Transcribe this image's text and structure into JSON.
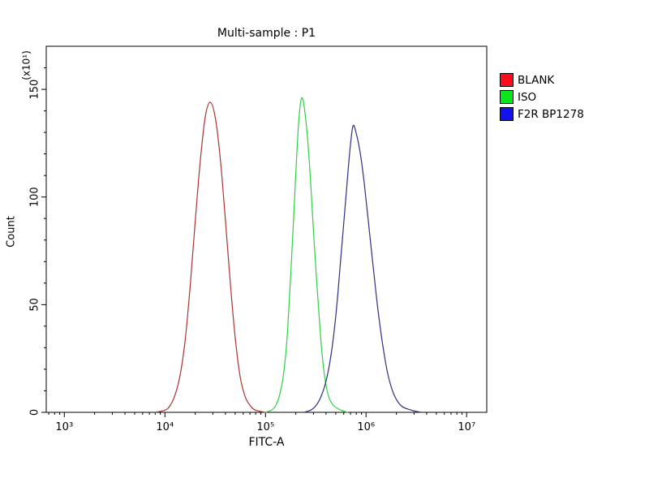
{
  "chart_data": {
    "type": "line",
    "title": "Multi-sample : P1",
    "xlabel": "FITC-A",
    "ylabel": "Count",
    "y_axis_multiplier": "(x10¹)",
    "x_scale": "log10",
    "x_range_log10": [
      2.82,
      7.2
    ],
    "ylim": [
      0,
      170
    ],
    "grid": false,
    "legend_position": "top-right",
    "axis_color": "#000000",
    "x_ticks": [
      {
        "log10": 3,
        "label": "10³"
      },
      {
        "log10": 4,
        "label": "10⁴"
      },
      {
        "log10": 5,
        "label": "10⁵"
      },
      {
        "log10": 6,
        "label": "10⁶"
      },
      {
        "log10": 7,
        "label": "10⁷"
      }
    ],
    "y_major_ticks": [
      {
        "value": 0,
        "label": "0"
      },
      {
        "value": 50,
        "label": "50"
      },
      {
        "value": 100,
        "label": "100"
      },
      {
        "value": 150,
        "label": "150"
      }
    ],
    "y_minor_tick_step": 10,
    "series": [
      {
        "name": "BLANK",
        "legend_color": "#fb0d1b",
        "line_color": "#aa3333",
        "peak": {
          "x_log10": 4.45,
          "count": 144
        },
        "points": [
          [
            3.9,
            0
          ],
          [
            4.0,
            1
          ],
          [
            4.05,
            3
          ],
          [
            4.1,
            8
          ],
          [
            4.15,
            17
          ],
          [
            4.2,
            33
          ],
          [
            4.25,
            58
          ],
          [
            4.3,
            88
          ],
          [
            4.35,
            116
          ],
          [
            4.4,
            137
          ],
          [
            4.45,
            144
          ],
          [
            4.5,
            137
          ],
          [
            4.55,
            118
          ],
          [
            4.6,
            90
          ],
          [
            4.65,
            60
          ],
          [
            4.7,
            34
          ],
          [
            4.75,
            16
          ],
          [
            4.8,
            7
          ],
          [
            4.85,
            3
          ],
          [
            4.9,
            1
          ],
          [
            5.0,
            0
          ]
        ]
      },
      {
        "name": "ISO",
        "legend_color": "#0be61c",
        "line_color": "#2fd045",
        "peak": {
          "x_log10": 5.36,
          "count": 146
        },
        "points": [
          [
            5.0,
            0
          ],
          [
            5.06,
            1
          ],
          [
            5.1,
            3
          ],
          [
            5.14,
            8
          ],
          [
            5.18,
            18
          ],
          [
            5.22,
            38
          ],
          [
            5.26,
            72
          ],
          [
            5.3,
            110
          ],
          [
            5.33,
            135
          ],
          [
            5.36,
            146
          ],
          [
            5.39,
            140
          ],
          [
            5.43,
            120
          ],
          [
            5.47,
            90
          ],
          [
            5.51,
            60
          ],
          [
            5.55,
            34
          ],
          [
            5.59,
            16
          ],
          [
            5.63,
            7
          ],
          [
            5.68,
            3
          ],
          [
            5.75,
            1
          ],
          [
            5.82,
            0
          ]
        ]
      },
      {
        "name": "F2R BP1278",
        "legend_color": "#1212ee",
        "line_color": "#2f2f80",
        "peak": {
          "x_log10": 5.87,
          "count": 133
        },
        "points": [
          [
            5.38,
            0
          ],
          [
            5.45,
            1
          ],
          [
            5.5,
            3
          ],
          [
            5.55,
            7
          ],
          [
            5.6,
            14
          ],
          [
            5.65,
            26
          ],
          [
            5.7,
            45
          ],
          [
            5.75,
            72
          ],
          [
            5.8,
            100
          ],
          [
            5.84,
            122
          ],
          [
            5.87,
            133
          ],
          [
            5.9,
            130
          ],
          [
            5.94,
            121
          ],
          [
            5.98,
            107
          ],
          [
            6.02,
            90
          ],
          [
            6.07,
            68
          ],
          [
            6.12,
            47
          ],
          [
            6.17,
            30
          ],
          [
            6.22,
            17
          ],
          [
            6.28,
            8
          ],
          [
            6.35,
            3
          ],
          [
            6.45,
            1
          ],
          [
            6.55,
            0
          ]
        ]
      }
    ]
  }
}
